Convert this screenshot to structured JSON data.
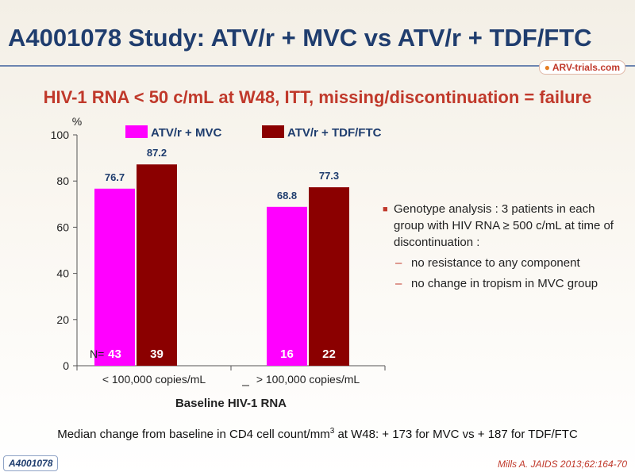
{
  "slide": {
    "title": "A4001078 Study: ATV/r + MVC vs ATV/r + TDF/FTC",
    "logo_text": "ARV-trials.com",
    "subtitle": "HIV-1 RNA < 50 c/mL at W48, ITT, missing/discontinuation = failure",
    "footer_main": "Median change from baseline in CD4 cell count/mm",
    "footer_sup": "3",
    "footer_tail": " at W48: + 173 for MVC vs + 187 for TDF/FTC",
    "study_tag": "A4001078",
    "reference": "Mills A. JAIDS 2013;62:164-70"
  },
  "bullets": {
    "main": "Genotype analysis : 3 patients in each group with HIV RNA ≥ 500 c/mL at time of discontinuation :",
    "subs": [
      "no resistance to any component",
      "no change in tropism in MVC group"
    ]
  },
  "colors": {
    "mvc": "#ff00ff",
    "tdf": "#8b0000",
    "title": "#1f3d6e",
    "accent": "#c0392b"
  },
  "chart_data": {
    "type": "bar",
    "ylabel": "%",
    "xlabel": "Baseline HIV-1 RNA",
    "ylim": [
      0,
      100
    ],
    "yticks": [
      0,
      20,
      40,
      60,
      80,
      100
    ],
    "categories": [
      "< 100,000 copies/mL",
      "> 100,000 copies/mL"
    ],
    "series": [
      {
        "name": "ATV/r + MVC",
        "values": [
          76.7,
          68.8
        ],
        "n": [
          43,
          16
        ]
      },
      {
        "name": "ATV/r + TDF/FTC",
        "values": [
          87.2,
          77.3
        ],
        "n": [
          39,
          22
        ]
      }
    ],
    "n_label": "N=",
    "legend": "top"
  }
}
